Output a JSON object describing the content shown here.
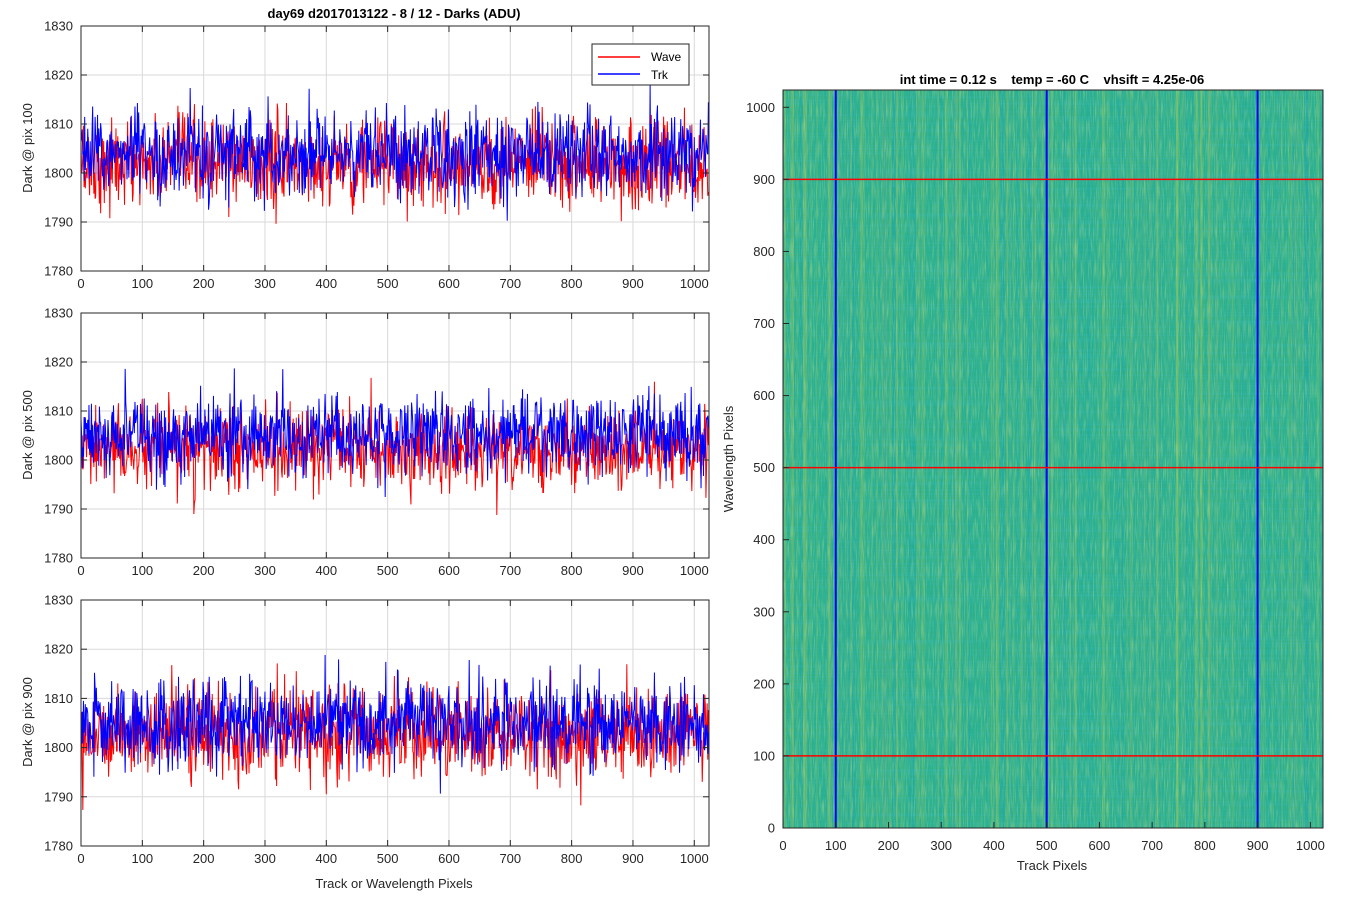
{
  "figure_title": "day69 d2017013122 - 8 / 12 - Darks (ADU)",
  "colors": {
    "wave": "#ff0000",
    "trk": "#0000ff",
    "grid": "#d9d9d9",
    "axis": "#262626"
  },
  "chart_data": [
    {
      "type": "line",
      "title": "day69 d2017013122 - 8 / 12 - Darks (ADU)",
      "xlabel": "",
      "ylabel": "Dark @ pix 100",
      "xlim": [
        0,
        1024
      ],
      "ylim": [
        1780,
        1830
      ],
      "xticks": [
        0,
        100,
        200,
        300,
        400,
        500,
        600,
        700,
        800,
        900,
        1000
      ],
      "yticks": [
        1780,
        1790,
        1800,
        1810,
        1820,
        1830
      ],
      "grid": true,
      "legend": "top-right",
      "series": [
        {
          "name": "Wave",
          "color": "#ff0000",
          "mean": 1802,
          "std": 4.5,
          "min": 1782,
          "max": 1824,
          "n": 1024
        },
        {
          "name": "Trk",
          "color": "#0000ff",
          "mean": 1804,
          "std": 4.5,
          "min": 1783,
          "max": 1827,
          "n": 1024
        }
      ]
    },
    {
      "type": "line",
      "title": "",
      "xlabel": "",
      "ylabel": "Dark @ pix 500",
      "xlim": [
        0,
        1024
      ],
      "ylim": [
        1780,
        1830
      ],
      "xticks": [
        0,
        100,
        200,
        300,
        400,
        500,
        600,
        700,
        800,
        900,
        1000
      ],
      "yticks": [
        1780,
        1790,
        1800,
        1810,
        1820,
        1830
      ],
      "grid": true,
      "series": [
        {
          "name": "Wave",
          "color": "#ff0000",
          "mean": 1802,
          "std": 4,
          "min": 1781,
          "max": 1819,
          "n": 1024
        },
        {
          "name": "Trk",
          "color": "#0000ff",
          "mean": 1805,
          "std": 4,
          "min": 1784,
          "max": 1821,
          "n": 1024
        }
      ]
    },
    {
      "type": "line",
      "title": "",
      "xlabel": "Track or Wavelength Pixels",
      "ylabel": "Dark @ pix 900",
      "xlim": [
        0,
        1024
      ],
      "ylim": [
        1780,
        1830
      ],
      "xticks": [
        0,
        100,
        200,
        300,
        400,
        500,
        600,
        700,
        800,
        900,
        1000
      ],
      "yticks": [
        1780,
        1790,
        1800,
        1810,
        1820,
        1830
      ],
      "grid": true,
      "series": [
        {
          "name": "Wave",
          "color": "#ff0000",
          "mean": 1803,
          "std": 4.5,
          "min": 1783,
          "max": 1824,
          "n": 1024
        },
        {
          "name": "Trk",
          "color": "#0000ff",
          "mean": 1805,
          "std": 4.5,
          "min": 1783,
          "max": 1821,
          "n": 1024
        }
      ]
    },
    {
      "type": "heatmap",
      "title": "int time = 0.12 s    temp = -60 C    vhsift = 4.25e-06",
      "xlabel": "Track Pixels",
      "ylabel": "Wavelength Pixels",
      "xlim": [
        0,
        1024
      ],
      "ylim": [
        0,
        1024
      ],
      "xticks": [
        0,
        100,
        200,
        300,
        400,
        500,
        600,
        700,
        800,
        900,
        1000
      ],
      "yticks": [
        0,
        100,
        200,
        300,
        400,
        500,
        600,
        700,
        800,
        900,
        1000
      ],
      "colormap": "parula",
      "base_color": "#2bb08f",
      "vertical_lines": {
        "color": "#0000ff",
        "x": [
          100,
          500,
          900
        ]
      },
      "horizontal_lines": {
        "color": "#ff0000",
        "y": [
          100,
          500,
          900
        ]
      }
    }
  ]
}
